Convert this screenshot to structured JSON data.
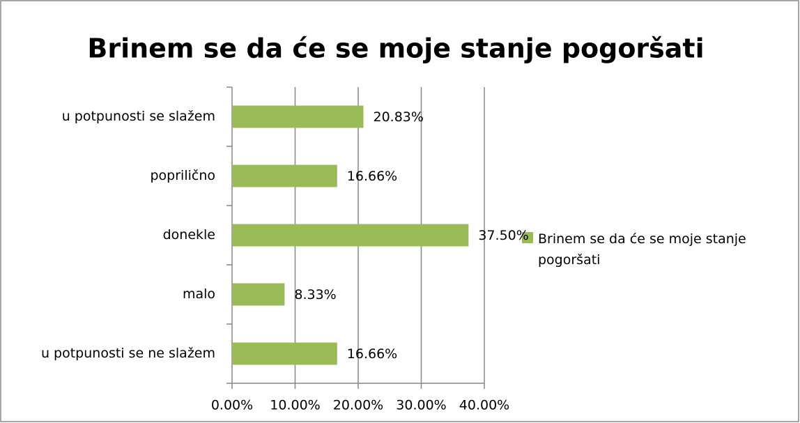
{
  "chart_data": {
    "type": "bar",
    "orientation": "horizontal",
    "title": "Brinem se da će se moje stanje pogoršati",
    "categories": [
      "u potpunosti se slažem",
      "poprilično",
      "donekle",
      "malo",
      "u potpunosti se ne slažem"
    ],
    "series": [
      {
        "name": "Brinem se da će se moje stanje pogoršati",
        "color": "#9bbb59",
        "values": [
          20.83,
          16.66,
          37.5,
          8.33,
          16.66
        ],
        "value_labels": [
          "20.83%",
          "16.66%",
          "37.50%",
          "8.33%",
          "16.66%"
        ]
      }
    ],
    "xlim": [
      0,
      40
    ],
    "xticks": [
      {
        "value": 0,
        "label": "0.00%"
      },
      {
        "value": 10,
        "label": "10.00%"
      },
      {
        "value": 20,
        "label": "20.00%"
      },
      {
        "value": 30,
        "label": "30.00%"
      },
      {
        "value": 40,
        "label": "40.00%"
      }
    ],
    "grid": true,
    "legend": "right"
  }
}
